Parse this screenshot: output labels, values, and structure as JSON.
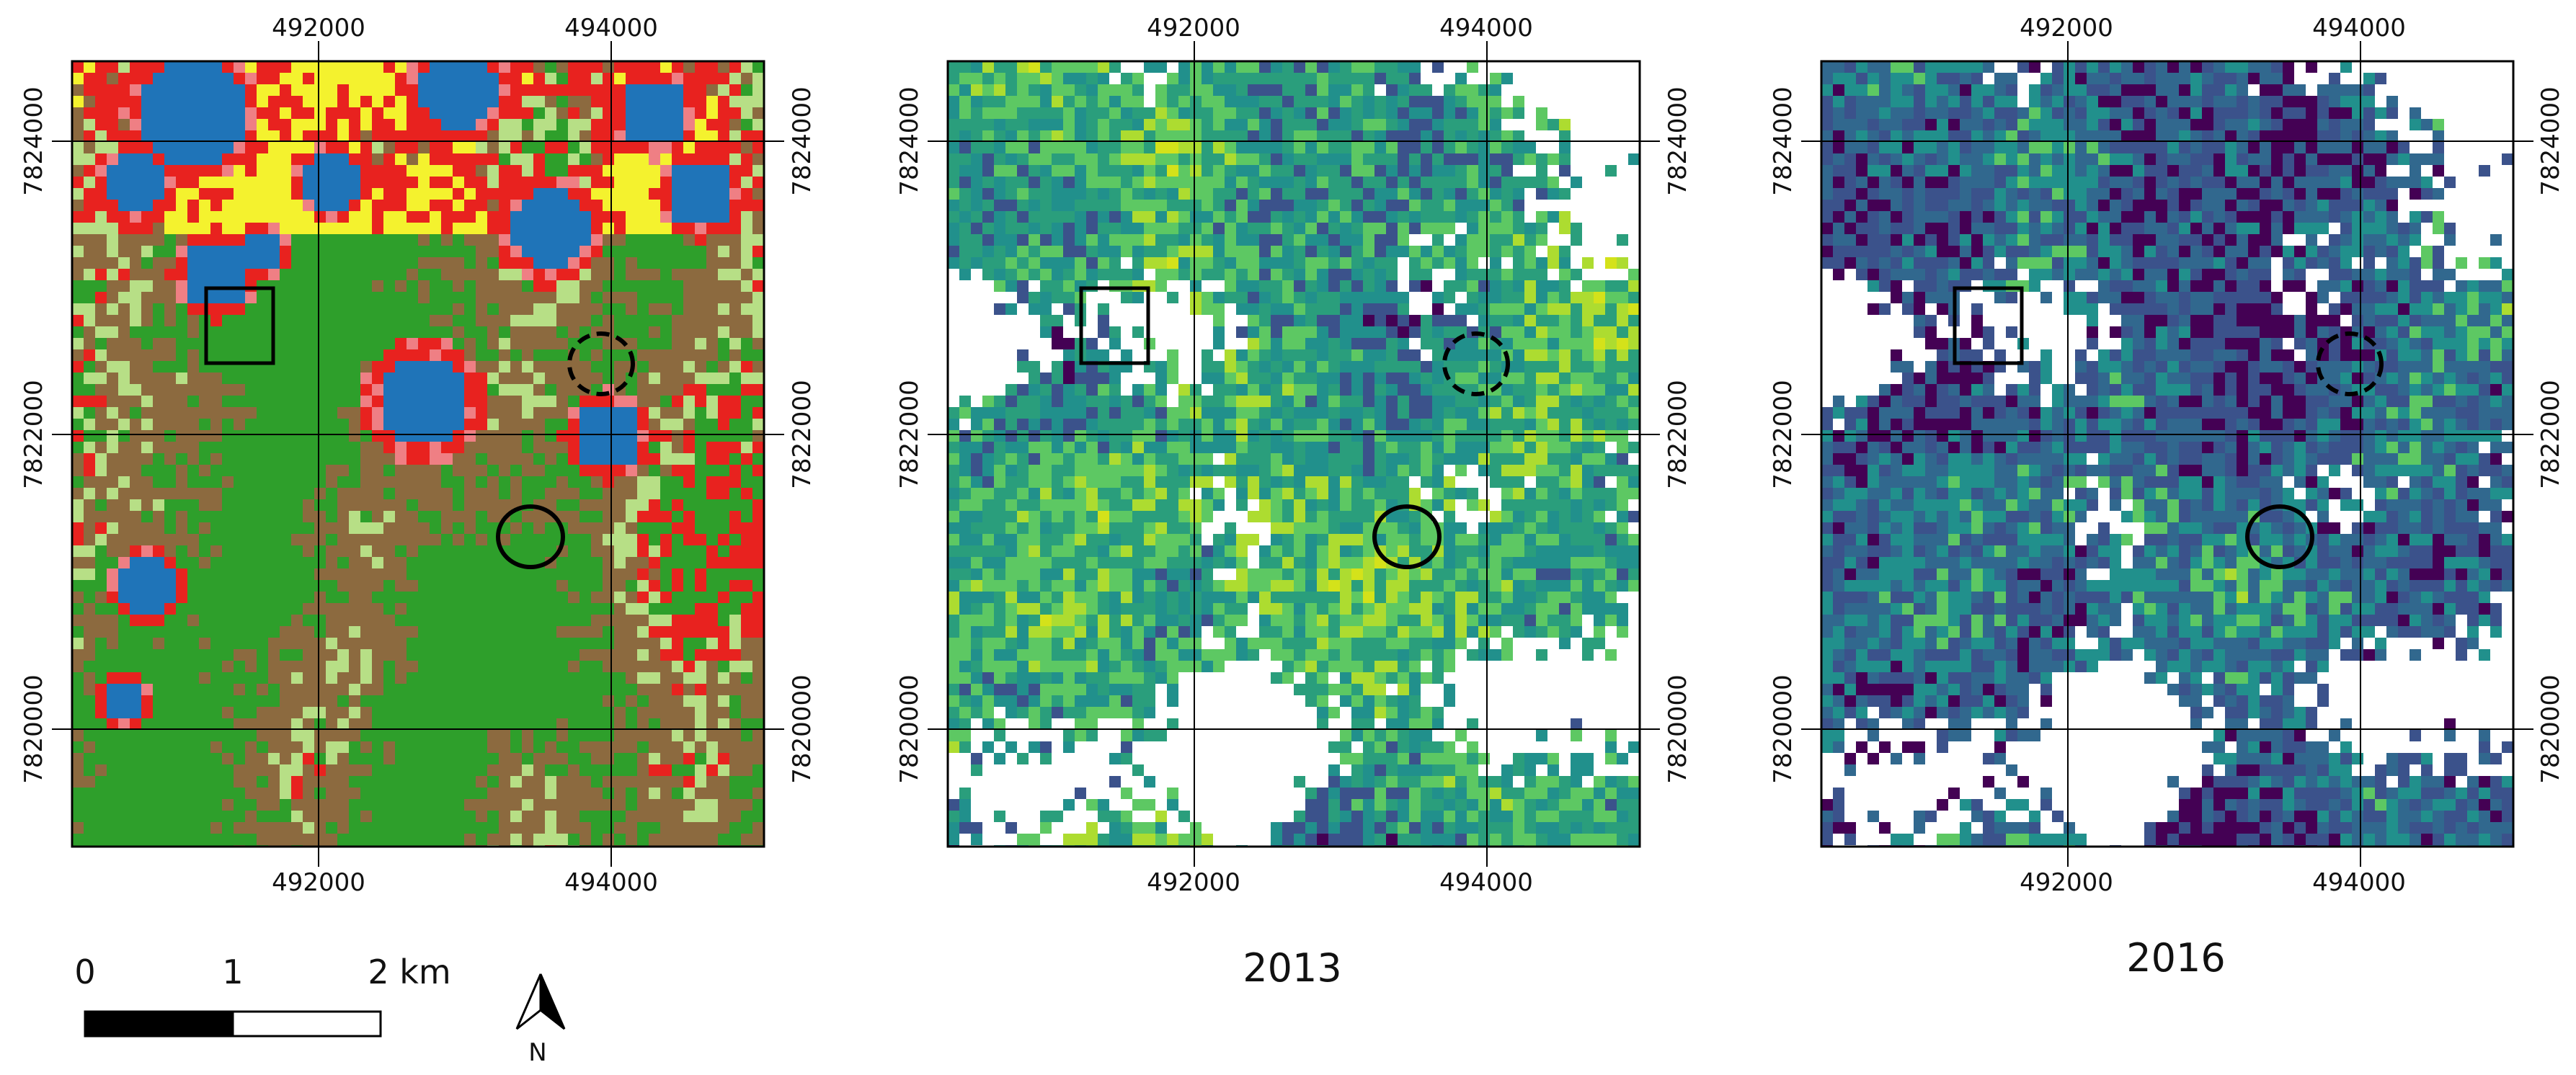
{
  "figure": {
    "panels": [
      {
        "id": "landcover",
        "caption": "",
        "x_ticks": [
          "492000",
          "494000"
        ],
        "y_ticks": [
          "7824000",
          "7822000",
          "7820000"
        ],
        "palette": [
          "#2e9f2b",
          "#8c6a3f",
          "#b7df86",
          "#e8221f",
          "#f4f22e",
          "#1f74b8",
          "#ef7f84"
        ]
      },
      {
        "id": "map-2013",
        "caption": "2013",
        "x_ticks": [
          "492000",
          "494000"
        ],
        "y_ticks": [
          "7824000",
          "7822000",
          "7820000"
        ],
        "palette": [
          "#440154",
          "#3b528b",
          "#21908c",
          "#2a9e7c",
          "#5dc863",
          "#addc30",
          "#d4e21a"
        ]
      },
      {
        "id": "map-2016",
        "caption": "2016",
        "x_ticks": [
          "492000",
          "494000"
        ],
        "y_ticks": [
          "7824000",
          "7822000",
          "7820000"
        ],
        "palette": [
          "#440154",
          "#3b528b",
          "#31688e",
          "#21908c",
          "#5dc863",
          "#addc30",
          "#d4e21a"
        ]
      }
    ],
    "scale_bar": {
      "labels": [
        "0",
        "1",
        "2 km"
      ]
    },
    "north_arrow": {
      "label": "N"
    }
  }
}
